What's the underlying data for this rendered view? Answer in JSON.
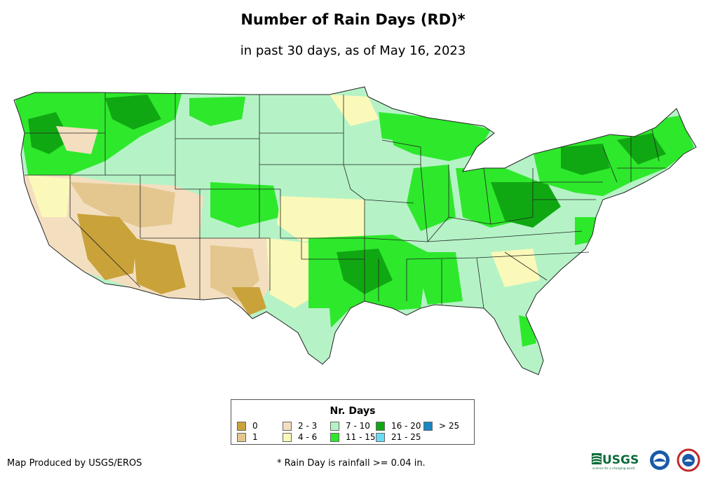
{
  "title": "Number of Rain Days (RD)*",
  "subtitle": "in past 30 days, as of May 16, 2023",
  "legend": {
    "title": "Nr. Days",
    "items": [
      {
        "label": "0",
        "color": "#c9a23a"
      },
      {
        "label": "1",
        "color": "#e3c78f"
      },
      {
        "label": "2 - 3",
        "color": "#f3dfc0"
      },
      {
        "label": "4 - 6",
        "color": "#fbf9b9"
      },
      {
        "label": "7 - 10",
        "color": "#b5f3c6"
      },
      {
        "label": "11 - 15",
        "color": "#2ee82c"
      },
      {
        "label": "16 - 20",
        "color": "#10a812"
      },
      {
        "label": "21 - 25",
        "color": "#66ddf2"
      },
      {
        "label": "> 25",
        "color": "#1a86c2"
      }
    ]
  },
  "credit": "Map Produced by USGS/EROS",
  "footnote": "* Rain Day is rainfall >= 0.04 in.",
  "logos": {
    "usgs_text": "USGS",
    "usgs_tagline": "science for a changing world"
  }
}
